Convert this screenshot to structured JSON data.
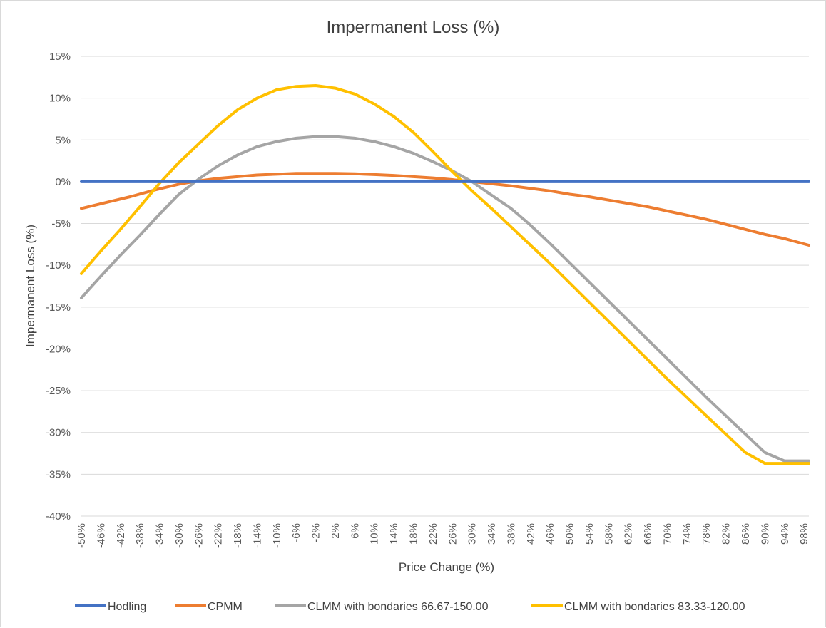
{
  "chart_data": {
    "type": "line",
    "title": "Impermanent Loss (%)",
    "xlabel": "Price Change (%)",
    "ylabel": "Impermanent Loss (%)",
    "x_range": [
      -50,
      99
    ],
    "x_tick_labels": [
      "-50%",
      "-46%",
      "-42%",
      "-38%",
      "-34%",
      "-30%",
      "-26%",
      "-22%",
      "-18%",
      "-14%",
      "-10%",
      "-6%",
      "-2%",
      "2%",
      "6%",
      "10%",
      "14%",
      "18%",
      "22%",
      "26%",
      "30%",
      "34%",
      "38%",
      "42%",
      "46%",
      "50%",
      "54%",
      "58%",
      "62%",
      "66%",
      "70%",
      "74%",
      "78%",
      "82%",
      "86%",
      "90%",
      "94%",
      "98%"
    ],
    "y_tick_labels": [
      "15%",
      "10%",
      "5%",
      "0%",
      "-5%",
      "-10%",
      "-15%",
      "-20%",
      "-25%",
      "-30%",
      "-35%",
      "-40%"
    ],
    "ylim": [
      -40,
      15
    ],
    "y_ticks": [
      15,
      10,
      5,
      0,
      -5,
      -10,
      -15,
      -20,
      -25,
      -30,
      -35,
      -40
    ],
    "grid": "horizontal",
    "legend_position": "bottom",
    "colors": {
      "hodling": "#4472c4",
      "cpmm": "#ed7d31",
      "clmm1": "#a5a5a5",
      "clmm2": "#ffc000",
      "grid": "#d9d9d9"
    },
    "series": [
      {
        "name": "Hodling",
        "color": "#4472c4",
        "x": [
          -50,
          99
        ],
        "y": [
          0,
          0
        ]
      },
      {
        "name": "CPMM",
        "color": "#ed7d31",
        "x": [
          -50,
          -45,
          -40,
          -35,
          -30,
          -26,
          -22,
          -18,
          -14,
          -10,
          -6,
          -2,
          2,
          6,
          10,
          14,
          18,
          22,
          26,
          30,
          34,
          38,
          42,
          46,
          50,
          54,
          58,
          62,
          66,
          70,
          74,
          78,
          82,
          86,
          90,
          94,
          99
        ],
        "y": [
          -3.2,
          -2.5,
          -1.8,
          -1.0,
          -0.3,
          0.1,
          0.4,
          0.6,
          0.8,
          0.9,
          1.0,
          1.0,
          1.0,
          0.95,
          0.85,
          0.75,
          0.6,
          0.45,
          0.25,
          0.0,
          -0.25,
          -0.5,
          -0.8,
          -1.1,
          -1.5,
          -1.8,
          -2.2,
          -2.6,
          -3.0,
          -3.5,
          -4.0,
          -4.5,
          -5.1,
          -5.7,
          -6.3,
          -6.8,
          -7.6
        ]
      },
      {
        "name": "CLMM with bondaries 66.67-150.00",
        "color": "#a5a5a5",
        "x": [
          -50,
          -46,
          -42,
          -38,
          -34,
          -30,
          -26,
          -22,
          -18,
          -14,
          -10,
          -6,
          -2,
          2,
          6,
          10,
          14,
          18,
          22,
          26,
          30,
          34,
          38,
          42,
          46,
          50,
          54,
          58,
          62,
          66,
          70,
          74,
          78,
          82,
          86,
          90,
          94,
          99
        ],
        "y": [
          -13.9,
          -11.3,
          -8.8,
          -6.4,
          -3.9,
          -1.5,
          0.3,
          1.9,
          3.2,
          4.2,
          4.8,
          5.2,
          5.4,
          5.4,
          5.2,
          4.8,
          4.2,
          3.4,
          2.4,
          1.3,
          0.0,
          -1.6,
          -3.2,
          -5.2,
          -7.4,
          -9.7,
          -12.0,
          -14.3,
          -16.6,
          -18.9,
          -21.2,
          -23.5,
          -25.8,
          -28.0,
          -30.2,
          -32.4,
          -33.4,
          -33.4
        ]
      },
      {
        "name": "CLMM with bondaries 83.33-120.00",
        "color": "#ffc000",
        "x": [
          -50,
          -46,
          -42,
          -38,
          -34,
          -30,
          -26,
          -22,
          -18,
          -14,
          -10,
          -6,
          -2,
          2,
          6,
          10,
          14,
          18,
          22,
          26,
          30,
          34,
          38,
          42,
          46,
          50,
          54,
          58,
          62,
          66,
          70,
          74,
          78,
          82,
          86,
          90,
          94,
          99
        ],
        "y": [
          -11.0,
          -8.3,
          -5.7,
          -3.0,
          -0.2,
          2.3,
          4.5,
          6.7,
          8.6,
          10.0,
          11.0,
          11.4,
          11.5,
          11.2,
          10.5,
          9.3,
          7.8,
          5.9,
          3.6,
          1.2,
          -1.1,
          -3.2,
          -5.4,
          -7.6,
          -9.8,
          -12.1,
          -14.4,
          -16.7,
          -19.0,
          -21.3,
          -23.6,
          -25.8,
          -28.0,
          -30.2,
          -32.4,
          -33.7,
          -33.7,
          -33.7
        ]
      }
    ]
  }
}
